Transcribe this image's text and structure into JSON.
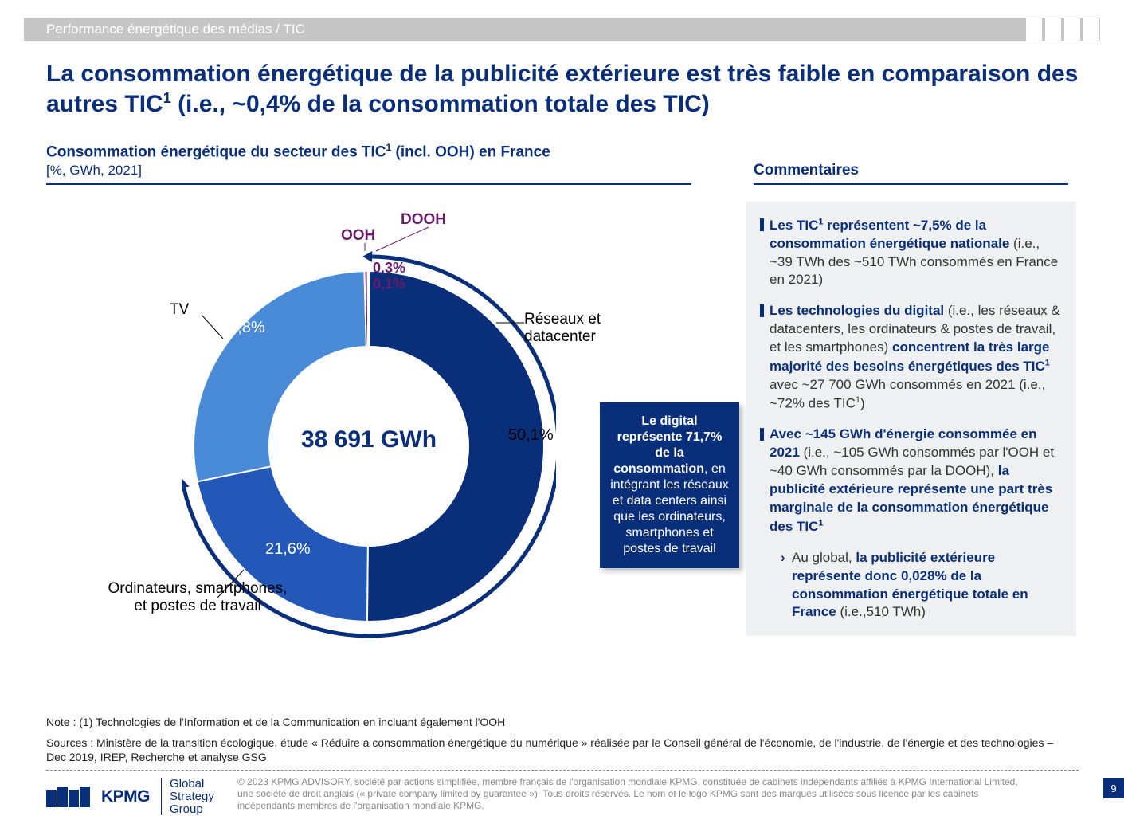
{
  "topbar": "Performance énergétique des médias / TIC",
  "title": "La consommation énergétique de la publicité extérieure est très faible en comparaison des autres TIC<sup>1</sup> (i.e., ~0,4% de la consommation totale des TIC)",
  "chart_title": "Consommation énergétique du secteur des TIC<sup>1</sup> (incl. OOH) en France",
  "chart_sub": "[%, GWh, 2021]",
  "comm_title": "Commentaires",
  "donut": {
    "center": "38 691 GWh",
    "radius_outer": 220,
    "radius_inner": 125,
    "background": "#ffffff",
    "slices": [
      {
        "name": "reseaux",
        "label": "Réseaux et\ndatacenter",
        "value": 50.1,
        "pct": "50,1%",
        "color": "#0a2f7a"
      },
      {
        "name": "ordi",
        "label": "Ordinateurs, smartphones,\net postes de travail",
        "value": 21.6,
        "pct": "21,6%",
        "color": "#2358b8"
      },
      {
        "name": "tv",
        "label": "TV",
        "value": 27.8,
        "pct": "27,8%",
        "color": "#4a8bd8"
      },
      {
        "name": "ooh",
        "label": "OOH",
        "value": 0.3,
        "pct": "0,3%",
        "color": "#6a1b6a"
      },
      {
        "name": "dooh",
        "label": "DOOH",
        "value": 0.1,
        "pct": "0,1%",
        "color": "#6a1b6a"
      }
    ],
    "small_labels": {
      "ooh": "OOH",
      "dooh": "DOOH",
      "ooh_pct": "0,3%",
      "dooh_pct": "0,1%"
    },
    "callout": "<b>Le digital représente 71,7% de la consommation</b>, en intégrant les réseaux et data centers ainsi que les ordinateurs, smartphones et postes de travail",
    "arrow_color": "#0a2f7a"
  },
  "comments": [
    "<span class='bold-blue'>Les TIC<sup>1</sup> représentent ~7,5% de la consommation énergétique nationale</span> (i.e., ~39 TWh des ~510 TWh consommés en France en 2021)",
    "<span class='bold-blue'>Les technologies du digital</span> (i.e., les réseaux & datacenters, les ordinateurs & postes de travail, et les smartphones) <span class='bold-blue'>concentrent la très large majorité des besoins énergétiques des TIC<sup>1 </sup></span>avec ~27 700 GWh consommés en 2021 (i.e., ~72% des TIC<sup>1</sup>)",
    "<span class='bold-blue'>Avec ~145 GWh d'énergie consommée en 2021</span> (i.e., ~105 GWh consommés par l'OOH et ~40 GWh consommés par la DOOH), <span class='bold-blue'>la publicité extérieure représente une part très marginale de la consommation énergétique des TIC<sup>1</sup></span>"
  ],
  "comment_sub": "Au global, <span class='bold-blue'>la publicité extérieure représente donc 0,028% de la consommation énergétique totale en France</span> (i.e.,510 TWh)",
  "note": "Note : (1) Technologies de l'Information et de la Communication en incluant également l'OOH",
  "sources": "Sources : Ministère de la transition écologique, étude « Réduire a consommation énergétique du numérique » réalisée par le Conseil général de l'économie, de l'industrie, de l'énergie et des technologies – Dec 2019, IREP, Recherche et analyse GSG",
  "logo": {
    "kpmg": "KPMG",
    "gsg": "Global\nStrategy\nGroup"
  },
  "copyright": "© 2023 KPMG ADVISORY, société par actions simplifiée, membre français de l'organisation mondiale KPMG, constituée de cabinets indépendants affiliés à KPMG International Limited, une société de droit anglais (« private company limited by guarantee »). Tous droits réservés. Le nom et le logo KPMG sont des marques utilisées sous licence par les cabinets indépendants membres de l'organisation mondiale KPMG.",
  "page": "9",
  "colors": {
    "primary": "#0a2f7a"
  }
}
